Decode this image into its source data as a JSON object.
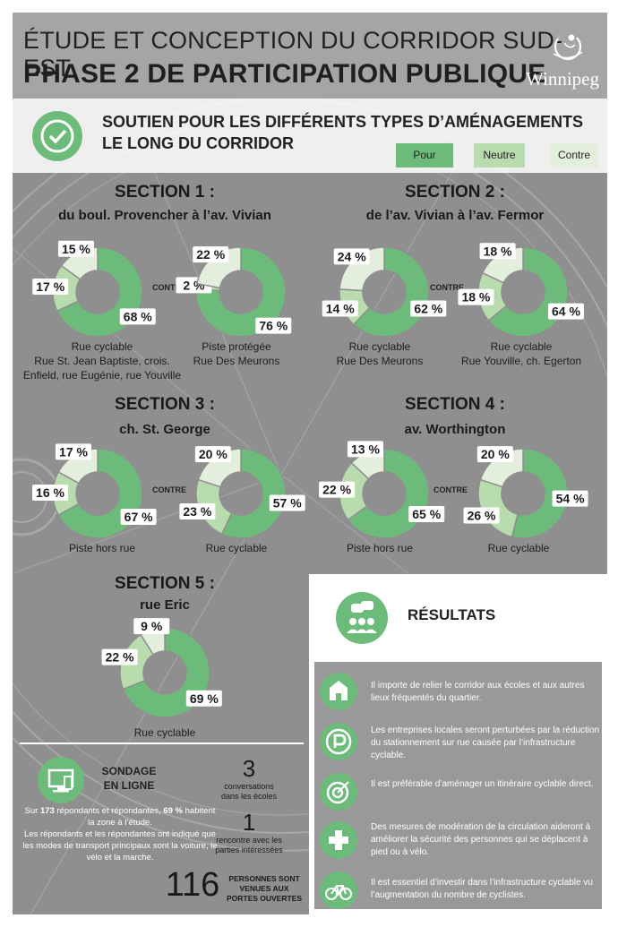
{
  "header": {
    "title_line1": "ÉTUDE ET CONCEPTION DU CORRIDOR SUD-EST",
    "title_line2": "PHASE 2 DE PARTICIPATION PUBLIQUE",
    "logo_text": "Winnipeg"
  },
  "band": {
    "title_line1": "SOUTIEN POUR LES DIFFÉRENTS TYPES D’AMÉNAGEMENTS",
    "title_line2": "LE LONG DU CORRIDOR",
    "icon": "check-icon"
  },
  "legend": [
    {
      "label": "Pour",
      "color": "#6dbb7a"
    },
    {
      "label": "Neutre",
      "color": "#b9dcae"
    },
    {
      "label": "Contre",
      "color": "#e3efdc"
    }
  ],
  "sections": [
    {
      "title": "SECTION 1 :",
      "subtitle": "du boul. Provencher à l’av. Vivian",
      "contre_label": "CONTRE"
    },
    {
      "title": "SECTION 2 :",
      "subtitle": "de l’av. Vivian à l’av. Fermor",
      "contre_label": "CONTRE"
    },
    {
      "title": "SECTION 3 :",
      "subtitle": "ch. St. George",
      "contre_label": "CONTRE"
    },
    {
      "title": "SECTION 4 :",
      "subtitle": "av. Worthington",
      "contre_label": "CONTRE"
    },
    {
      "title": "SECTION 5 :",
      "subtitle": "rue Eric",
      "contre_label": ""
    }
  ],
  "chart_data": [
    {
      "type": "pie",
      "section": "SECTION 1 :",
      "caption": [
        "Rue cyclable",
        "Rue St. Jean Baptiste, crois.",
        "Enfield, rue Eugénie, rue Youville"
      ],
      "categories": [
        "Pour",
        "Neutre",
        "Contre"
      ],
      "values": [
        68,
        17,
        15
      ],
      "labels": [
        "68 %",
        "17 %",
        "15 %"
      ]
    },
    {
      "type": "pie",
      "section": "SECTION 1 :",
      "caption": [
        "Piste protégée",
        "Rue Des Meurons"
      ],
      "categories": [
        "Pour",
        "Neutre",
        "Contre"
      ],
      "values": [
        76,
        2,
        22
      ],
      "labels": [
        "76 %",
        "2 %",
        "22 %"
      ]
    },
    {
      "type": "pie",
      "section": "SECTION 2 :",
      "caption": [
        "Rue cyclable",
        "Rue Des Meurons"
      ],
      "categories": [
        "Pour",
        "Neutre",
        "Contre"
      ],
      "values": [
        62,
        14,
        24
      ],
      "labels": [
        "62 %",
        "14 %",
        "24 %"
      ]
    },
    {
      "type": "pie",
      "section": "SECTION 2 :",
      "caption": [
        "Rue cyclable",
        "Rue Youville, ch. Egerton"
      ],
      "categories": [
        "Pour",
        "Neutre",
        "Contre"
      ],
      "values": [
        64,
        18,
        18
      ],
      "labels": [
        "64 %",
        "18 %",
        "18 %"
      ]
    },
    {
      "type": "pie",
      "section": "SECTION 3 :",
      "caption": [
        "Piste hors rue"
      ],
      "categories": [
        "Pour",
        "Neutre",
        "Contre"
      ],
      "values": [
        67,
        16,
        17
      ],
      "labels": [
        "67 %",
        "16 %",
        "17 %"
      ]
    },
    {
      "type": "pie",
      "section": "SECTION 3 :",
      "caption": [
        "Rue cyclable"
      ],
      "categories": [
        "Pour",
        "Neutre",
        "Contre"
      ],
      "values": [
        57,
        23,
        20
      ],
      "labels": [
        "57 %",
        "23 %",
        "20 %"
      ]
    },
    {
      "type": "pie",
      "section": "SECTION 4 :",
      "caption": [
        "Piste hors rue"
      ],
      "categories": [
        "Pour",
        "Neutre",
        "Contre"
      ],
      "values": [
        65,
        22,
        13
      ],
      "labels": [
        "65 %",
        "22 %",
        "13 %"
      ]
    },
    {
      "type": "pie",
      "section": "SECTION 4 :",
      "caption": [
        "Rue cyclable"
      ],
      "categories": [
        "Pour",
        "Neutre",
        "Contre"
      ],
      "values": [
        54,
        26,
        20
      ],
      "labels": [
        "54 %",
        "26 %",
        "20 %"
      ]
    },
    {
      "type": "pie",
      "section": "SECTION 5 :",
      "caption": [
        "Rue cyclable"
      ],
      "categories": [
        "Pour",
        "Neutre",
        "Contre"
      ],
      "values": [
        69,
        22,
        9
      ],
      "labels": [
        "69 %",
        "22 %",
        "9 %"
      ]
    }
  ],
  "results": {
    "title": "RÉSULTATS",
    "items": [
      {
        "icon": "school-icon",
        "text": "Il importe de relier le corridor aux écoles et aux autres lieux fréquentés du quartier."
      },
      {
        "icon": "parking-icon",
        "text": "Les entreprises locales seront perturbées par la réduction du stationnement sur rue causée par l’infrastructure cyclable."
      },
      {
        "icon": "target-icon",
        "text": "Il est préférable d’aménager un itinéraire cyclable direct."
      },
      {
        "icon": "cross-icon",
        "text": "Des mesures de modération de la circulation aideront à améliorer la sécurité des personnes qui se déplacent à pied ou à vélo."
      },
      {
        "icon": "bicycle-icon",
        "text": "Il est essentiel d’investir dans l’infrastructure cyclable vu l’augmentation du nombre de cyclistes."
      }
    ]
  },
  "sondage": {
    "title_line1": "SONDAGE",
    "title_line2": "EN LIGNE",
    "text_pre": "Sur ",
    "respondents": "173",
    "text_mid": " répondants et répondantes, ",
    "pct": "69 %",
    "text_post": " habitent la zone à l’étude.",
    "text2": "Les répondants et les répondantes ont indiqué que les modes de transport principaux sont la voiture, le vélo et la marche."
  },
  "stats": [
    {
      "value": "3",
      "label_line1": "conversations",
      "label_line2": "dans les écoles"
    },
    {
      "value": "1",
      "label_line1": "rencontre avec les",
      "label_line2": "parties intéressées"
    },
    {
      "value": "116",
      "label_line1": "PERSONNES SONT",
      "label_line2": "VENUES AUX",
      "label_line3": "PORTES OUVERTES"
    }
  ]
}
